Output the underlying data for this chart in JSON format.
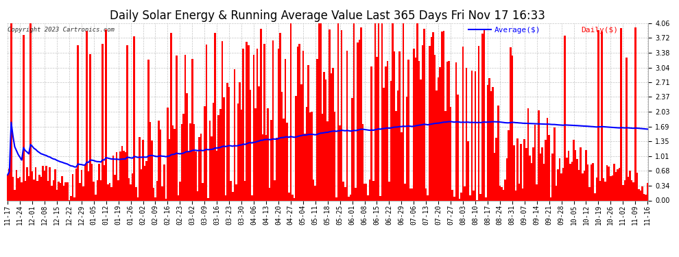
{
  "title": "Daily Solar Energy & Running Average Value Last 365 Days Fri Nov 17 16:33",
  "copyright": "Copyright 2023 Cartronics.com",
  "legend_average": "Average($)",
  "legend_daily": "Daily($)",
  "bar_color": "#ff0000",
  "average_line_color": "#0000ff",
  "background_color": "#ffffff",
  "grid_color": "#aaaaaa",
  "ylim": [
    0.0,
    4.06
  ],
  "yticks": [
    0.0,
    0.34,
    0.68,
    1.01,
    1.35,
    1.69,
    2.03,
    2.37,
    2.71,
    3.04,
    3.38,
    3.72,
    4.06
  ],
  "title_fontsize": 12,
  "tick_fontsize": 7,
  "figsize": [
    9.9,
    3.75
  ],
  "dpi": 100
}
